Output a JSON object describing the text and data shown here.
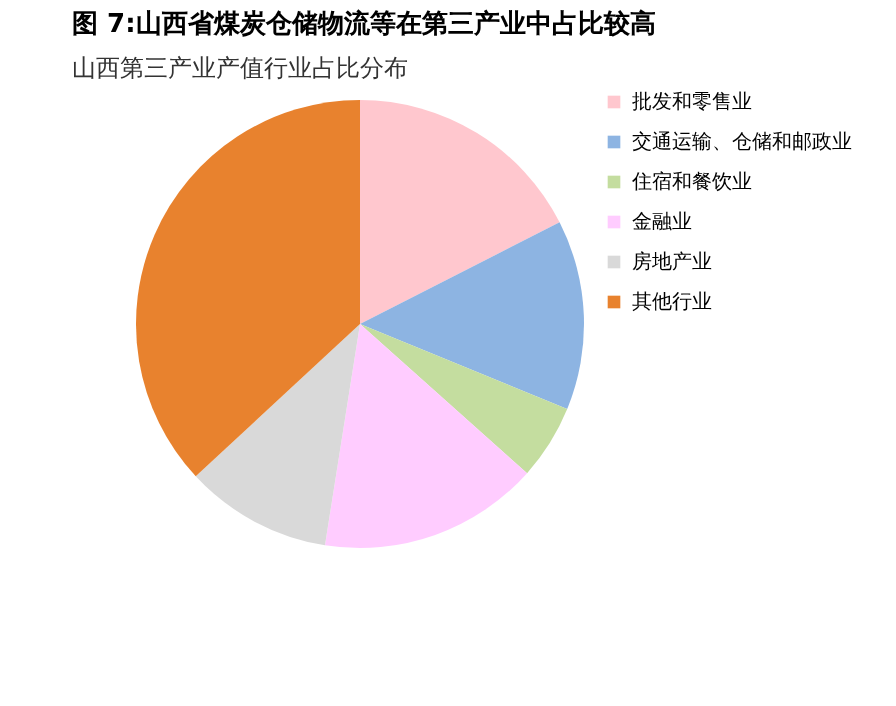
{
  "chart_data": {
    "type": "pie",
    "title": "图 7:山西省煤炭仓储物流等在第三产业中占比较高",
    "subtitle": "山西第三产业产值行业占比分布",
    "categories": [
      "批发和零售业",
      "交通运输、仓储和邮政业",
      "住宿和餐饮业",
      "金融业",
      "房地产业",
      "其他行业"
    ],
    "values": [
      17.5,
      13.7,
      5.4,
      15.9,
      10.6,
      36.9
    ],
    "colors": [
      "#ffc7ce",
      "#8db4e2",
      "#c4dd9f",
      "#ffccff",
      "#d9d9d9",
      "#e8822e"
    ],
    "legend": "right"
  }
}
